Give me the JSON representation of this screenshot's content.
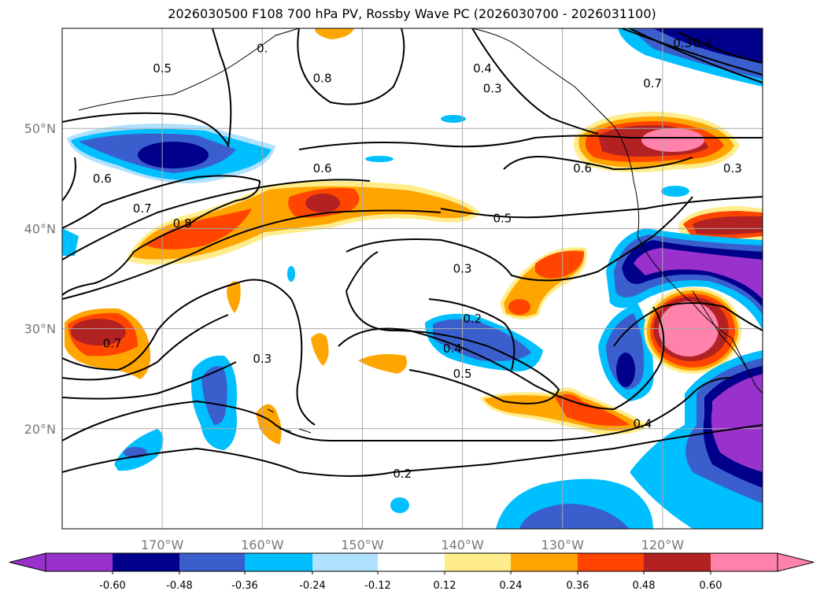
{
  "title": "2026030500 F108 700 hPa PV, Rossby Wave PC (2026030700 - 2026031100)",
  "map": {
    "extent": {
      "lon": [
        -180,
        -110
      ],
      "lat": [
        10,
        60
      ]
    },
    "lat_labels": [
      "50°N",
      "40°N",
      "30°N",
      "20°N"
    ],
    "lat_values": [
      50,
      40,
      30,
      20
    ],
    "lon_labels": [
      "170°W",
      "160°W",
      "150°W",
      "140°W",
      "130°W",
      "120°W"
    ],
    "lon_values": [
      -170,
      -160,
      -150,
      -140,
      -130,
      -120
    ],
    "contour_labels": [
      {
        "text": "0.5",
        "lon": -170,
        "lat": 56
      },
      {
        "text": "0.",
        "lon": -160,
        "lat": 58
      },
      {
        "text": "0.8",
        "lon": -154,
        "lat": 55
      },
      {
        "text": "0.4",
        "lon": -138,
        "lat": 56
      },
      {
        "text": "0.3",
        "lon": -137,
        "lat": 54
      },
      {
        "text": "0.7",
        "lon": -121,
        "lat": 54.5
      },
      {
        "text": "0.3",
        "lon": -118,
        "lat": 58.5
      },
      {
        "text": "0.4",
        "lon": -116,
        "lat": 58.5
      },
      {
        "text": "0.6",
        "lon": -176,
        "lat": 45
      },
      {
        "text": "0.7",
        "lon": -172,
        "lat": 42
      },
      {
        "text": "0.8",
        "lon": -168,
        "lat": 40.5
      },
      {
        "text": "0.6",
        "lon": -154,
        "lat": 46
      },
      {
        "text": "0.6",
        "lon": -128,
        "lat": 46
      },
      {
        "text": "0.5",
        "lon": -136,
        "lat": 41
      },
      {
        "text": "0.3",
        "lon": -113,
        "lat": 46
      },
      {
        "text": "0.3",
        "lon": -140,
        "lat": 36
      },
      {
        "text": "0.2",
        "lon": -139,
        "lat": 31
      },
      {
        "text": "0.4",
        "lon": -141,
        "lat": 28
      },
      {
        "text": "0.5",
        "lon": -140,
        "lat": 25.5
      },
      {
        "text": "0.7",
        "lon": -175,
        "lat": 28.5
      },
      {
        "text": "0.3",
        "lon": -160,
        "lat": 27
      },
      {
        "text": "0.4",
        "lon": -122,
        "lat": 20.5
      },
      {
        "text": "0.2",
        "lon": -146,
        "lat": 15.5
      }
    ]
  },
  "colorbar": {
    "ticks": [
      "-0.60",
      "-0.48",
      "-0.36",
      "-0.24",
      "-0.12",
      "0.12",
      "0.24",
      "0.36",
      "0.48",
      "0.60"
    ],
    "colors": [
      "#9932CC",
      "#00008B",
      "#3A5FCD",
      "#00BFFF",
      "#B0E2FF",
      "#FFFFFF",
      "#FFEC8B",
      "#FFA500",
      "#FF4500",
      "#B22222",
      "#FF82AB"
    ]
  }
}
